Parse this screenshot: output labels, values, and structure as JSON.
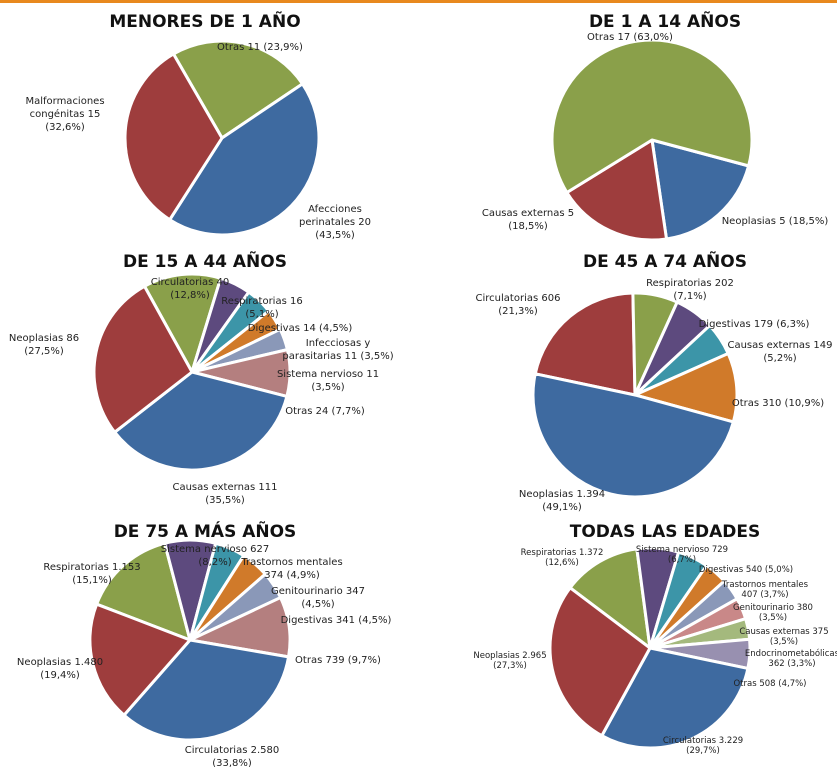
{
  "chart_data": [
    {
      "type": "pie",
      "title": "MENORES DE 1 AÑO",
      "labels": [
        "Otras 11 (23,9%)",
        "Afecciones\nperinatales 20\n(43,5%)",
        "Malformaciones\ncongénitas 15\n(32,6%)"
      ],
      "values": [
        11,
        20,
        15
      ],
      "colors": [
        "#8aa04a",
        "#3e6aa0",
        "#9e3d3d"
      ]
    },
    {
      "type": "pie",
      "title": "DE 1 A 14 AÑOS",
      "labels": [
        "Neoplasias 5 (18,5%)",
        "Causas externas 5\n(18,5%)",
        "Otras 17 (63,0%)"
      ],
      "values": [
        5,
        5,
        17
      ],
      "colors": [
        "#3e6aa0",
        "#9e3d3d",
        "#8aa04a"
      ]
    },
    {
      "type": "pie",
      "title": "DE 15 A 44 AÑOS",
      "labels": [
        "Circulatorias 40\n(12,8%)",
        "Respiratorias 16\n(5,1%)",
        "Digestivas 14 (4,5%)",
        "Infecciosas y\nparasitarias 11 (3,5%)",
        "Sistema nervioso 11\n(3,5%)",
        "Otras 24 (7,7%)",
        "Causas externas 111\n(35,5%)",
        "Neoplasias 86\n(27,5%)"
      ],
      "values": [
        40,
        16,
        14,
        11,
        11,
        24,
        111,
        86
      ],
      "colors": [
        "#8aa04a",
        "#5d4a7e",
        "#3c95a8",
        "#d07a2a",
        "#8a98b8",
        "#b47f7f",
        "#3e6aa0",
        "#9e3d3d"
      ]
    },
    {
      "type": "pie",
      "title": "DE 45 A 74 AÑOS",
      "labels": [
        "Circulatorias 606\n(21,3%)",
        "Respiratorias 202\n(7,1%)",
        "Digestivas 179 (6,3%)",
        "Causas externas 149\n(5,2%)",
        "Otras 310 (10,9%)",
        "Neoplasias 1.394\n(49,1%)"
      ],
      "values": [
        606,
        202,
        179,
        149,
        310,
        1394
      ],
      "colors": [
        "#9e3d3d",
        "#8aa04a",
        "#5d4a7e",
        "#3c95a8",
        "#d07a2a",
        "#3e6aa0"
      ]
    },
    {
      "type": "pie",
      "title": "DE 75 A MÁS AÑOS",
      "labels": [
        "Respiratorias 1.153\n(15,1%)",
        "Sistema nervioso 627\n(8,2%)",
        "Trastornos mentales\n374 (4,9%)",
        "Genitourinario 347\n(4,5%)",
        "Digestivas 341 (4,5%)",
        "Otras 739 (9,7%)",
        "Circulatorias 2.580\n(33,8%)",
        "Neoplasias 1.480\n(19,4%)"
      ],
      "values": [
        1153,
        627,
        374,
        347,
        341,
        739,
        2580,
        1480
      ],
      "colors": [
        "#8aa04a",
        "#5d4a7e",
        "#3c95a8",
        "#d07a2a",
        "#8a98b8",
        "#b47f7f",
        "#3e6aa0",
        "#9e3d3d"
      ]
    },
    {
      "type": "pie",
      "title": "TODAS LAS EDADES",
      "labels": [
        "Respiratorias 1.372\n(12,6%)",
        "Sistema nervioso 729\n(6,7%)",
        "Digestivas 540 (5,0%)",
        "Trastornos mentales\n407 (3,7%)",
        "Genitourinario 380\n(3,5%)",
        "Causas externas 375\n(3,5%)",
        "Endocrinometabólicas\n362 (3,3%)",
        "Otras 508 (4,7%)",
        "Circulatorias 3.229\n(29,7%)",
        "Neoplasias 2.965\n(27,3%)"
      ],
      "values": [
        1372,
        729,
        540,
        407,
        380,
        375,
        362,
        508,
        3229,
        2965
      ],
      "colors": [
        "#8aa04a",
        "#5d4a7e",
        "#3c95a8",
        "#d07a2a",
        "#8a98b8",
        "#c98888",
        "#a4b97d",
        "#9890b0",
        "#3e6aa0",
        "#9e3d3d"
      ]
    }
  ]
}
